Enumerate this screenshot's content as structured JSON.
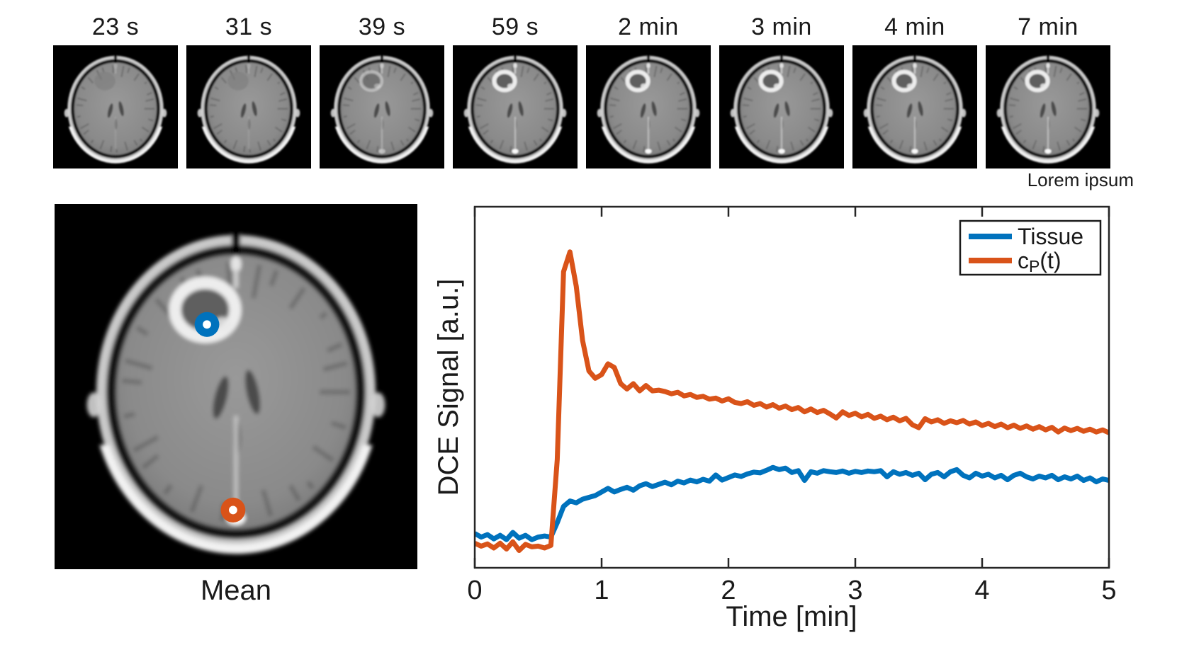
{
  "figure": {
    "background": "#ffffff",
    "text_color": "#1a1a1a"
  },
  "thumbnails": {
    "caption": "Lorem ipsum",
    "items": [
      {
        "label": "23 s",
        "enhancement": "none"
      },
      {
        "label": "31 s",
        "enhancement": "none"
      },
      {
        "label": "39 s",
        "enhancement": "early"
      },
      {
        "label": "59 s",
        "enhancement": "full"
      },
      {
        "label": "2 min",
        "enhancement": "full"
      },
      {
        "label": "3 min",
        "enhancement": "full"
      },
      {
        "label": "4 min",
        "enhancement": "full"
      },
      {
        "label": "7 min",
        "enhancement": "full"
      }
    ]
  },
  "mean_image": {
    "label": "Mean",
    "markers": [
      {
        "name": "tissue-roi-marker",
        "color": "#0072BD",
        "x": 0.42,
        "y": 0.33
      },
      {
        "name": "plasma-roi-marker",
        "color": "#D95319",
        "x": 0.492,
        "y": 0.838
      }
    ]
  },
  "chart_data": {
    "type": "line",
    "title": "",
    "xlabel": "Time [min]",
    "ylabel": "DCE Signal [a.u.]",
    "xlim": [
      0,
      5
    ],
    "ylim": [
      0,
      1
    ],
    "xticks": [
      0,
      1,
      2,
      3,
      4,
      5
    ],
    "yticks": [],
    "grid": false,
    "legend_position": "top-right",
    "legend_cp": {
      "pre": "c",
      "sub": "P",
      "post": "(t)"
    },
    "x_start": 0,
    "x_step": 0.05,
    "series": [
      {
        "name": "Tissue",
        "color": "#0072BD",
        "values": [
          0.095,
          0.085,
          0.092,
          0.08,
          0.09,
          0.078,
          0.098,
          0.082,
          0.09,
          0.078,
          0.085,
          0.088,
          0.085,
          0.125,
          0.17,
          0.185,
          0.18,
          0.19,
          0.195,
          0.2,
          0.21,
          0.22,
          0.21,
          0.217,
          0.223,
          0.215,
          0.227,
          0.233,
          0.225,
          0.231,
          0.237,
          0.23,
          0.24,
          0.235,
          0.243,
          0.238,
          0.245,
          0.24,
          0.257,
          0.243,
          0.25,
          0.257,
          0.253,
          0.26,
          0.265,
          0.263,
          0.27,
          0.278,
          0.272,
          0.276,
          0.264,
          0.269,
          0.242,
          0.266,
          0.262,
          0.269,
          0.266,
          0.264,
          0.268,
          0.262,
          0.267,
          0.264,
          0.268,
          0.266,
          0.269,
          0.252,
          0.266,
          0.259,
          0.264,
          0.256,
          0.262,
          0.244,
          0.259,
          0.264,
          0.252,
          0.266,
          0.272,
          0.256,
          0.249,
          0.262,
          0.254,
          0.259,
          0.249,
          0.256,
          0.244,
          0.256,
          0.262,
          0.252,
          0.246,
          0.254,
          0.249,
          0.256,
          0.244,
          0.252,
          0.246,
          0.254,
          0.242,
          0.249,
          0.238,
          0.246,
          0.242
        ]
      },
      {
        "name": "cP(t)",
        "color": "#D95319",
        "values": [
          0.068,
          0.06,
          0.066,
          0.055,
          0.068,
          0.052,
          0.072,
          0.048,
          0.065,
          0.058,
          0.06,
          0.055,
          0.062,
          0.3,
          0.82,
          0.875,
          0.78,
          0.63,
          0.545,
          0.525,
          0.535,
          0.565,
          0.555,
          0.51,
          0.495,
          0.51,
          0.49,
          0.505,
          0.49,
          0.492,
          0.488,
          0.482,
          0.486,
          0.476,
          0.48,
          0.472,
          0.475,
          0.467,
          0.47,
          0.462,
          0.468,
          0.458,
          0.455,
          0.46,
          0.45,
          0.455,
          0.445,
          0.452,
          0.442,
          0.448,
          0.438,
          0.444,
          0.432,
          0.44,
          0.43,
          0.436,
          0.426,
          0.415,
          0.432,
          0.422,
          0.428,
          0.418,
          0.425,
          0.414,
          0.42,
          0.41,
          0.417,
          0.407,
          0.414,
          0.396,
          0.388,
          0.413,
          0.404,
          0.41,
          0.4,
          0.407,
          0.402,
          0.408,
          0.398,
          0.404,
          0.394,
          0.4,
          0.391,
          0.398,
          0.388,
          0.395,
          0.386,
          0.393,
          0.384,
          0.391,
          0.382,
          0.389,
          0.376,
          0.387,
          0.38,
          0.386,
          0.378,
          0.384,
          0.376,
          0.382,
          0.374
        ]
      }
    ]
  }
}
